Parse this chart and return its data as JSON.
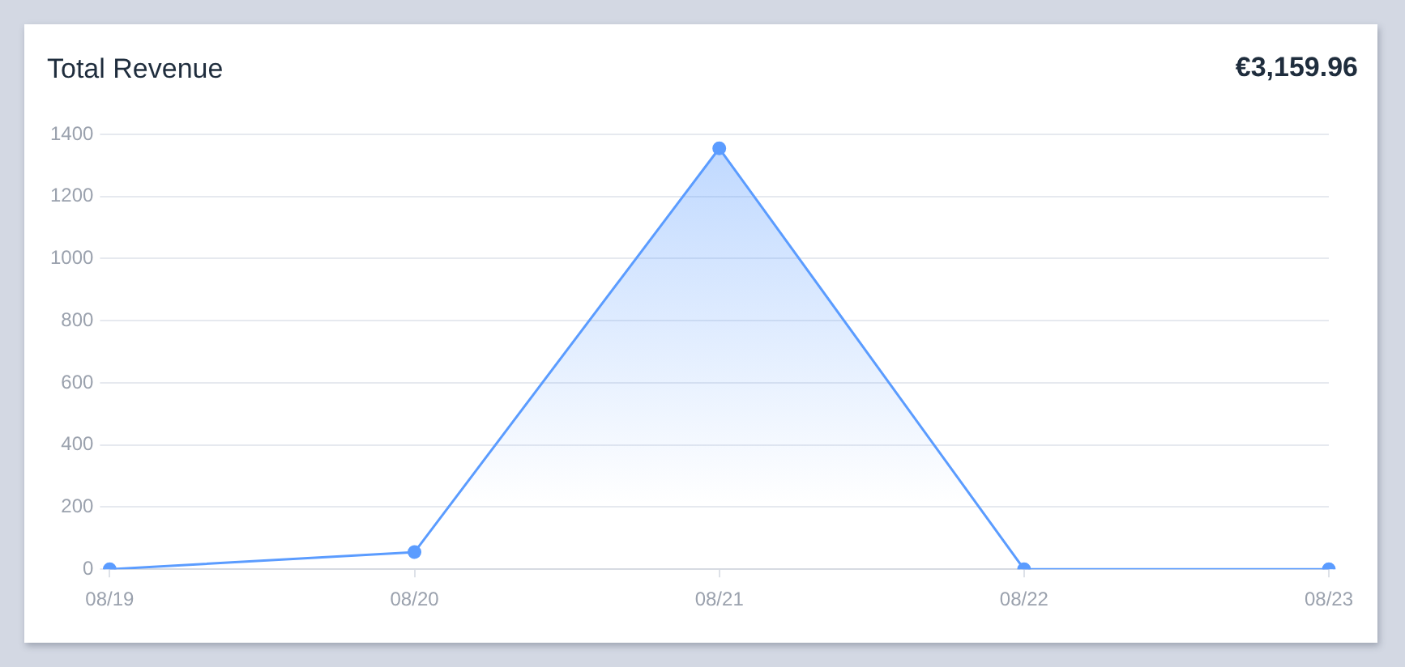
{
  "chart_data": {
    "type": "area",
    "title": "Total Revenue",
    "annotations": [
      "€3,159.96"
    ],
    "categories": [
      "08/19",
      "08/20",
      "08/21",
      "08/22",
      "08/23"
    ],
    "series": [
      {
        "color": "#5b9cff",
        "values": [
          0,
          55,
          1355,
          0,
          0
        ]
      }
    ],
    "ylim": [
      0,
      1400
    ],
    "yticks": [
      0,
      200,
      400,
      600,
      800,
      1000,
      1200,
      1400
    ],
    "grid": "y",
    "legend": false,
    "marker": "circle",
    "line_style": "solid"
  }
}
